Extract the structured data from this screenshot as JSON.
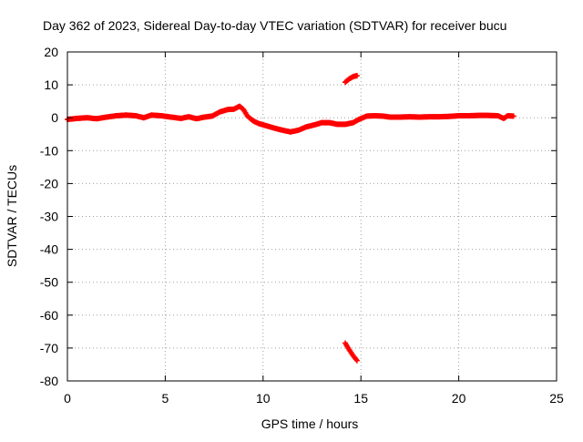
{
  "chart_data": {
    "type": "scatter",
    "title": "Day 362 of 2023, Sidereal Day-to-day VTEC variation (SDTVAR) for receiver bucu",
    "xlabel": "GPS time / hours",
    "ylabel": "SDTVAR / TECUs",
    "xlim": [
      0,
      25
    ],
    "ylim": [
      -80,
      20
    ],
    "xticks": [
      0,
      5,
      10,
      15,
      20,
      25
    ],
    "yticks": [
      20,
      10,
      0,
      -10,
      -20,
      -30,
      -40,
      -50,
      -60,
      -70,
      -80
    ],
    "grid": true,
    "series": [
      {
        "name": "SDTVAR",
        "color": "#ff0000",
        "marker": "plus",
        "segments": [
          [
            [
              0.0,
              -0.5
            ],
            [
              0.5,
              -0.2
            ],
            [
              1.0,
              0.0
            ],
            [
              1.5,
              -0.3
            ],
            [
              2.0,
              0.2
            ],
            [
              2.5,
              0.6
            ],
            [
              3.0,
              0.8
            ],
            [
              3.5,
              0.6
            ],
            [
              3.9,
              0.0
            ],
            [
              4.3,
              0.8
            ],
            [
              4.8,
              0.6
            ],
            [
              5.3,
              0.2
            ],
            [
              5.8,
              -0.2
            ],
            [
              6.2,
              0.3
            ],
            [
              6.6,
              -0.3
            ],
            [
              7.0,
              0.2
            ],
            [
              7.4,
              0.5
            ],
            [
              7.8,
              1.8
            ],
            [
              8.2,
              2.5
            ],
            [
              8.5,
              2.6
            ],
            [
              8.8,
              3.5
            ],
            [
              9.0,
              2.5
            ],
            [
              9.2,
              0.5
            ],
            [
              9.5,
              -1.0
            ],
            [
              9.8,
              -1.8
            ],
            [
              10.2,
              -2.5
            ],
            [
              10.6,
              -3.2
            ],
            [
              11.0,
              -3.8
            ],
            [
              11.4,
              -4.3
            ],
            [
              11.8,
              -3.8
            ],
            [
              12.2,
              -2.8
            ],
            [
              12.6,
              -2.2
            ],
            [
              13.0,
              -1.5
            ],
            [
              13.4,
              -1.5
            ],
            [
              13.8,
              -2.0
            ],
            [
              14.2,
              -2.0
            ],
            [
              14.6,
              -1.5
            ],
            [
              14.9,
              -0.5
            ],
            [
              15.3,
              0.5
            ],
            [
              15.7,
              0.6
            ],
            [
              16.1,
              0.5
            ],
            [
              16.5,
              0.2
            ],
            [
              17.0,
              0.2
            ],
            [
              17.5,
              0.3
            ],
            [
              18.0,
              0.2
            ],
            [
              18.5,
              0.3
            ],
            [
              19.0,
              0.3
            ],
            [
              19.5,
              0.4
            ],
            [
              20.0,
              0.6
            ],
            [
              20.5,
              0.6
            ],
            [
              21.0,
              0.7
            ],
            [
              21.5,
              0.7
            ],
            [
              22.0,
              0.6
            ],
            [
              22.3,
              -0.2
            ],
            [
              22.5,
              0.6
            ],
            [
              22.8,
              0.5
            ]
          ],
          [
            [
              14.2,
              10.8
            ],
            [
              14.4,
              11.8
            ],
            [
              14.6,
              12.5
            ],
            [
              14.8,
              12.8
            ]
          ],
          [
            [
              14.2,
              -68.5
            ],
            [
              14.4,
              -70.5
            ],
            [
              14.6,
              -72.3
            ],
            [
              14.8,
              -73.8
            ]
          ]
        ]
      }
    ]
  }
}
